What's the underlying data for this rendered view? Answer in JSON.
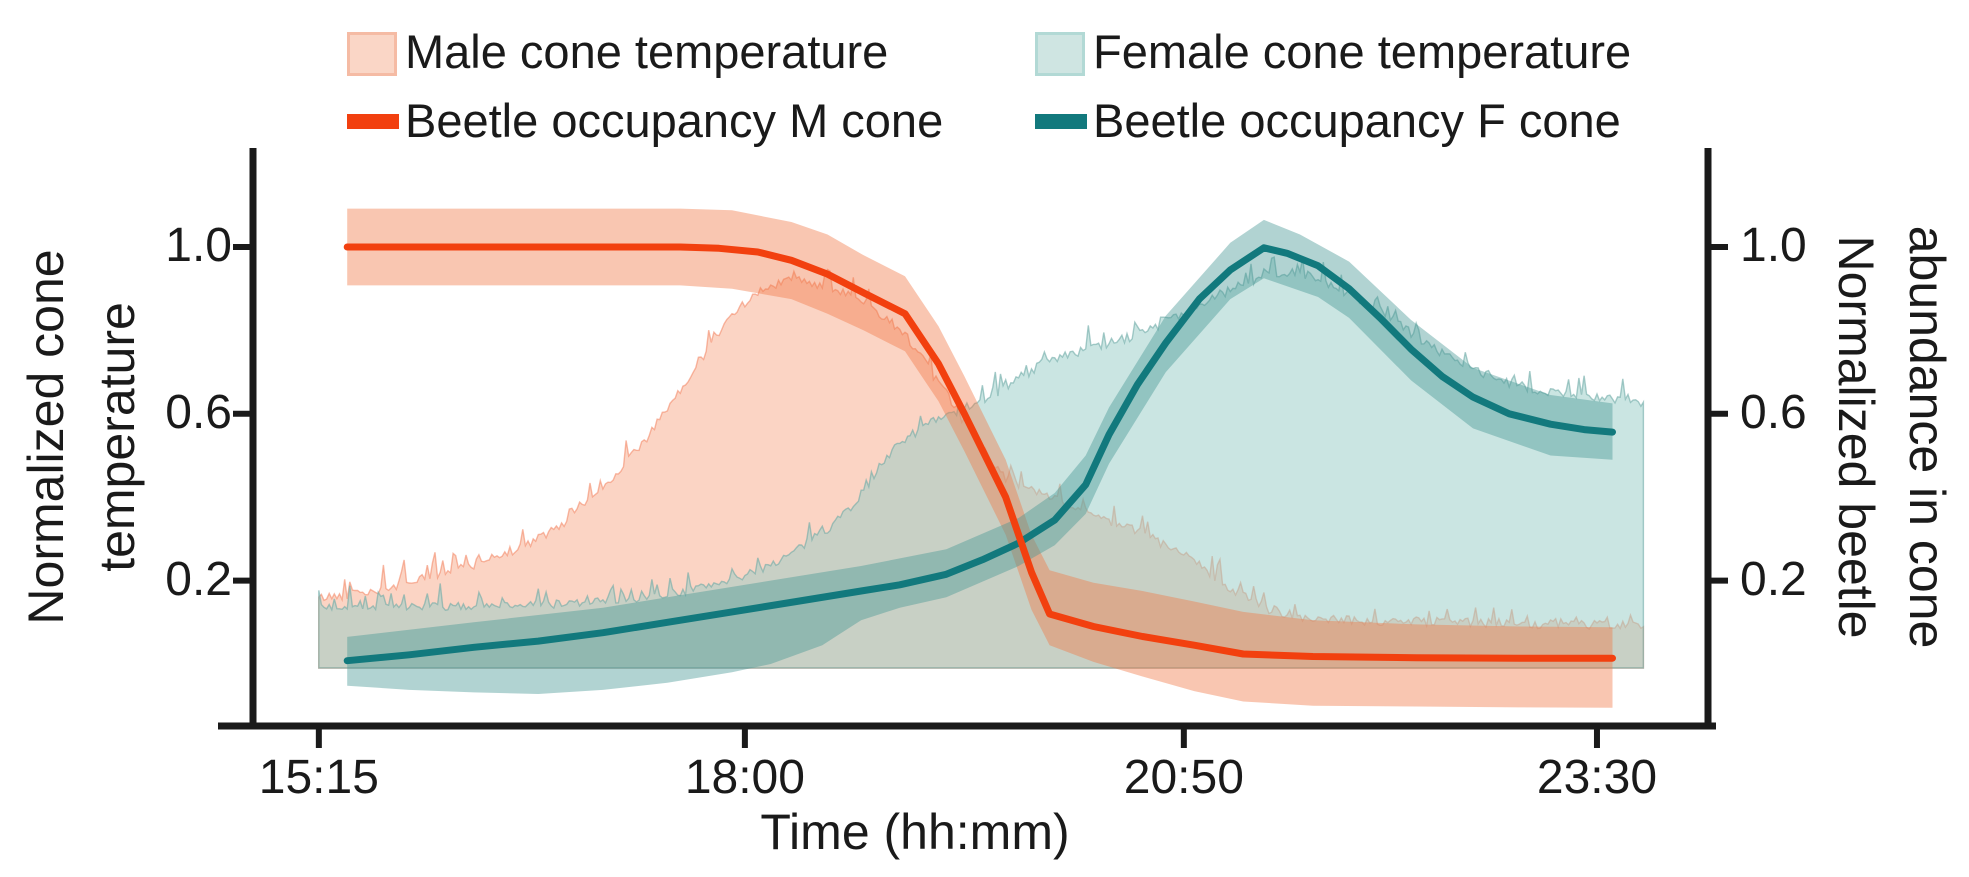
{
  "legend": {
    "items": [
      {
        "id": "male-temp",
        "label": "Male cone temperature",
        "swatch": "box",
        "fill": "#FAD6C6",
        "border": "#F5BBA4"
      },
      {
        "id": "female-temp",
        "label": "Female cone temperature",
        "swatch": "box",
        "fill": "#CFE5E2",
        "border": "#B2D9D5"
      },
      {
        "id": "beetle-m",
        "label": "Beetle occupancy M cone",
        "swatch": "line",
        "fill": "#F2400F",
        "border": "#F2400F"
      },
      {
        "id": "beetle-f",
        "label": "Beetle occupancy F cone",
        "swatch": "line",
        "fill": "#12797D",
        "border": "#12797D"
      }
    ]
  },
  "chart_data": {
    "type": "line",
    "title": "",
    "xlabel": "Time (hh:mm)",
    "x_unit": "minutes since midnight",
    "x_range": [
      889.5,
      1453
    ],
    "y_range": [
      -0.149,
      1.237
    ],
    "grid": false,
    "axis_color": "#1a1a1a",
    "x_ticks": [
      {
        "label": "15:15",
        "min": 915
      },
      {
        "label": "18:00",
        "min": 1080
      },
      {
        "label": "20:50",
        "min": 1250
      },
      {
        "label": "23:30",
        "min": 1410
      }
    ],
    "y_left": {
      "label_line1": "Normalized cone",
      "label_line2": "temperature",
      "ticks": [
        "1.0",
        "0.6",
        "0.2"
      ],
      "tick_values": [
        1.0,
        0.6,
        0.2
      ]
    },
    "y_right": {
      "label_line1": "Normalized beetle",
      "label_line2": "abundance in cone",
      "ticks": [
        "1.0",
        "0.6",
        "0.2"
      ],
      "tick_values": [
        1.0,
        0.6,
        0.2
      ]
    },
    "series": [
      {
        "id": "male_temp",
        "name": "Male cone temperature",
        "kind": "noisy_band",
        "axis": "left",
        "fill": "rgba(247,165,132,0.48)",
        "edge": "rgba(242,130,95,0.55)",
        "noise_amp": 0.022,
        "noise_spike": 0.05,
        "seed": 42,
        "baseline": 0,
        "points": [
          [
            915,
            0.155
          ],
          [
            935,
            0.17
          ],
          [
            955,
            0.2
          ],
          [
            975,
            0.235
          ],
          [
            995,
            0.28
          ],
          [
            1010,
            0.33
          ],
          [
            1028,
            0.44
          ],
          [
            1042,
            0.54
          ],
          [
            1055,
            0.65
          ],
          [
            1066,
            0.75
          ],
          [
            1076,
            0.84
          ],
          [
            1086,
            0.895
          ],
          [
            1095,
            0.915
          ],
          [
            1102,
            0.92
          ],
          [
            1112,
            0.9
          ],
          [
            1125,
            0.875
          ],
          [
            1142,
            0.79
          ],
          [
            1155,
            0.67
          ],
          [
            1168,
            0.55
          ],
          [
            1181,
            0.44
          ],
          [
            1196,
            0.4
          ],
          [
            1215,
            0.355
          ],
          [
            1234,
            0.31
          ],
          [
            1252,
            0.25
          ],
          [
            1268,
            0.18
          ],
          [
            1282,
            0.13
          ],
          [
            1295,
            0.11
          ],
          [
            1320,
            0.1
          ],
          [
            1350,
            0.098
          ],
          [
            1380,
            0.093
          ],
          [
            1408,
            0.09
          ],
          [
            1428,
            0.088
          ]
        ]
      },
      {
        "id": "female_temp",
        "name": "Female cone temperature",
        "kind": "noisy_band",
        "axis": "left",
        "fill": "rgba(150,203,197,0.50)",
        "edge": "rgba(110,170,166,0.60)",
        "noise_amp": 0.022,
        "noise_spike": 0.05,
        "seed": 7,
        "baseline": 0,
        "points": [
          [
            915,
            0.135
          ],
          [
            945,
            0.13
          ],
          [
            975,
            0.135
          ],
          [
            1005,
            0.14
          ],
          [
            1035,
            0.15
          ],
          [
            1060,
            0.175
          ],
          [
            1080,
            0.21
          ],
          [
            1095,
            0.25
          ],
          [
            1110,
            0.31
          ],
          [
            1122,
            0.38
          ],
          [
            1132,
            0.46
          ],
          [
            1140,
            0.53
          ],
          [
            1152,
            0.575
          ],
          [
            1165,
            0.61
          ],
          [
            1180,
            0.655
          ],
          [
            1196,
            0.72
          ],
          [
            1215,
            0.755
          ],
          [
            1234,
            0.79
          ],
          [
            1252,
            0.845
          ],
          [
            1268,
            0.895
          ],
          [
            1284,
            0.935
          ],
          [
            1298,
            0.925
          ],
          [
            1312,
            0.89
          ],
          [
            1326,
            0.845
          ],
          [
            1340,
            0.78
          ],
          [
            1356,
            0.72
          ],
          [
            1372,
            0.675
          ],
          [
            1390,
            0.65
          ],
          [
            1410,
            0.635
          ],
          [
            1428,
            0.625
          ]
        ]
      },
      {
        "id": "beetle_m",
        "name": "Beetle occupancy M cone",
        "kind": "line_ribbon",
        "axis": "right",
        "line_color": "#F2400F",
        "line_width": 7,
        "ribbon_fill": "rgba(240,120,70,0.42)",
        "line": [
          [
            926,
            1.0
          ],
          [
            1055,
            1.0
          ],
          [
            1070,
            0.997
          ],
          [
            1085,
            0.988
          ],
          [
            1098,
            0.968
          ],
          [
            1112,
            0.935
          ],
          [
            1126,
            0.89
          ],
          [
            1142,
            0.84
          ],
          [
            1155,
            0.72
          ],
          [
            1165,
            0.6
          ],
          [
            1181,
            0.4
          ],
          [
            1191,
            0.22
          ],
          [
            1198,
            0.12
          ],
          [
            1215,
            0.09
          ],
          [
            1234,
            0.066
          ],
          [
            1254,
            0.045
          ],
          [
            1273,
            0.024
          ],
          [
            1300,
            0.018
          ],
          [
            1340,
            0.015
          ],
          [
            1380,
            0.014
          ],
          [
            1416,
            0.014
          ]
        ],
        "upper": [
          [
            926,
            1.092
          ],
          [
            1055,
            1.092
          ],
          [
            1075,
            1.088
          ],
          [
            1098,
            1.06
          ],
          [
            1112,
            1.03
          ],
          [
            1126,
            0.98
          ],
          [
            1142,
            0.93
          ],
          [
            1155,
            0.81
          ],
          [
            1165,
            0.69
          ],
          [
            1181,
            0.49
          ],
          [
            1191,
            0.31
          ],
          [
            1198,
            0.225
          ],
          [
            1215,
            0.195
          ],
          [
            1234,
            0.175
          ],
          [
            1254,
            0.15
          ],
          [
            1273,
            0.125
          ],
          [
            1300,
            0.105
          ],
          [
            1340,
            0.095
          ],
          [
            1380,
            0.09
          ],
          [
            1416,
            0.088
          ]
        ],
        "lower": [
          [
            926,
            0.908
          ],
          [
            1055,
            0.908
          ],
          [
            1075,
            0.9
          ],
          [
            1098,
            0.875
          ],
          [
            1112,
            0.84
          ],
          [
            1126,
            0.8
          ],
          [
            1142,
            0.75
          ],
          [
            1155,
            0.63
          ],
          [
            1165,
            0.51
          ],
          [
            1181,
            0.31
          ],
          [
            1191,
            0.13
          ],
          [
            1198,
            0.045
          ],
          [
            1215,
            0.005
          ],
          [
            1234,
            -0.03
          ],
          [
            1254,
            -0.065
          ],
          [
            1273,
            -0.09
          ],
          [
            1300,
            -0.1
          ],
          [
            1340,
            -0.102
          ],
          [
            1380,
            -0.104
          ],
          [
            1416,
            -0.105
          ]
        ]
      },
      {
        "id": "beetle_f",
        "name": "Beetle occupancy F cone",
        "kind": "line_ribbon",
        "axis": "right",
        "line_color": "#12797D",
        "line_width": 7,
        "ribbon_fill": "rgba(70,150,147,0.42)",
        "line": [
          [
            926,
            0.008
          ],
          [
            950,
            0.022
          ],
          [
            975,
            0.04
          ],
          [
            1000,
            0.055
          ],
          [
            1025,
            0.075
          ],
          [
            1050,
            0.1
          ],
          [
            1075,
            0.125
          ],
          [
            1100,
            0.15
          ],
          [
            1125,
            0.175
          ],
          [
            1140,
            0.19
          ],
          [
            1158,
            0.215
          ],
          [
            1172,
            0.25
          ],
          [
            1186,
            0.29
          ],
          [
            1200,
            0.345
          ],
          [
            1212,
            0.43
          ],
          [
            1221,
            0.55
          ],
          [
            1232,
            0.67
          ],
          [
            1243,
            0.77
          ],
          [
            1256,
            0.875
          ],
          [
            1268,
            0.945
          ],
          [
            1281,
            0.998
          ],
          [
            1290,
            0.985
          ],
          [
            1302,
            0.955
          ],
          [
            1314,
            0.9
          ],
          [
            1326,
            0.83
          ],
          [
            1338,
            0.755
          ],
          [
            1350,
            0.69
          ],
          [
            1362,
            0.64
          ],
          [
            1376,
            0.6
          ],
          [
            1392,
            0.575
          ],
          [
            1405,
            0.562
          ],
          [
            1416,
            0.556
          ]
        ],
        "upper": [
          [
            926,
            0.065
          ],
          [
            975,
            0.1
          ],
          [
            1025,
            0.135
          ],
          [
            1075,
            0.185
          ],
          [
            1125,
            0.235
          ],
          [
            1158,
            0.275
          ],
          [
            1186,
            0.35
          ],
          [
            1200,
            0.41
          ],
          [
            1212,
            0.5
          ],
          [
            1221,
            0.615
          ],
          [
            1243,
            0.835
          ],
          [
            1268,
            1.01
          ],
          [
            1281,
            1.065
          ],
          [
            1295,
            1.03
          ],
          [
            1314,
            0.965
          ],
          [
            1338,
            0.825
          ],
          [
            1362,
            0.71
          ],
          [
            1392,
            0.645
          ],
          [
            1416,
            0.625
          ]
        ],
        "lower": [
          [
            926,
            -0.052
          ],
          [
            950,
            -0.062
          ],
          [
            975,
            -0.068
          ],
          [
            1000,
            -0.072
          ],
          [
            1025,
            -0.062
          ],
          [
            1050,
            -0.045
          ],
          [
            1075,
            -0.02
          ],
          [
            1090,
            0.0
          ],
          [
            1110,
            0.045
          ],
          [
            1125,
            0.105
          ],
          [
            1140,
            0.135
          ],
          [
            1158,
            0.16
          ],
          [
            1186,
            0.235
          ],
          [
            1200,
            0.285
          ],
          [
            1212,
            0.36
          ],
          [
            1221,
            0.48
          ],
          [
            1243,
            0.7
          ],
          [
            1268,
            0.875
          ],
          [
            1281,
            0.925
          ],
          [
            1302,
            0.88
          ],
          [
            1314,
            0.83
          ],
          [
            1338,
            0.68
          ],
          [
            1362,
            0.565
          ],
          [
            1392,
            0.5
          ],
          [
            1416,
            0.49
          ]
        ]
      }
    ]
  }
}
